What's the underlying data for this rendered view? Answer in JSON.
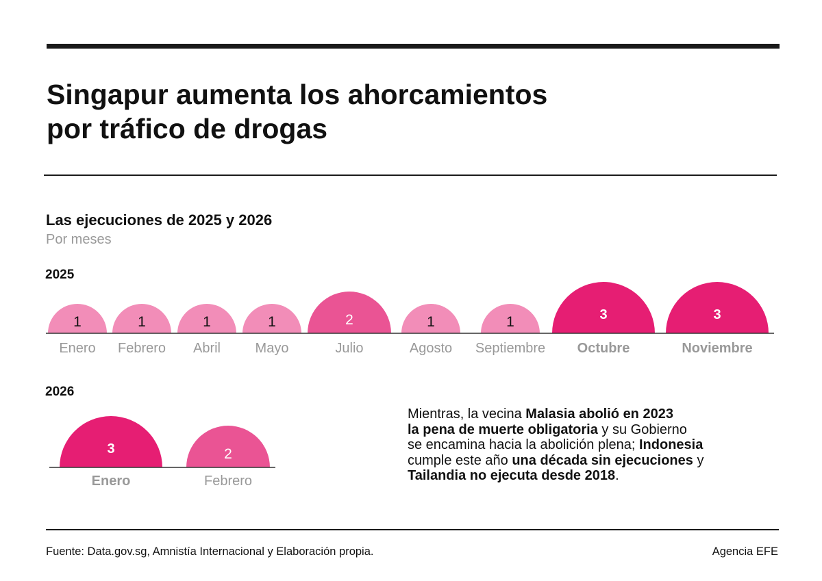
{
  "header": {
    "title_line1": "Singapur aumenta los ahorcamientos",
    "title_line2": "por tráfico de drogas"
  },
  "chart_data": {
    "type": "proportional-semicircles",
    "title": "Las ejecuciones de 2025 y 2026",
    "subtitle": "Por meses",
    "colors": {
      "1": "#f28db8",
      "2": "#ea5494",
      "3": "#e61e73"
    },
    "series": [
      {
        "name": "2025",
        "categories": [
          "Enero",
          "Febrero",
          "Abril",
          "Mayo",
          "Julio",
          "Agosto",
          "Septiembre",
          "Octubre",
          "Noviembre"
        ],
        "values": [
          1,
          1,
          1,
          1,
          2,
          1,
          1,
          3,
          3
        ]
      },
      {
        "name": "2026",
        "categories": [
          "Enero",
          "Febrero"
        ],
        "values": [
          3,
          2
        ]
      }
    ]
  },
  "note": [
    {
      "t": "Mientras, la vecina ",
      "b": false
    },
    {
      "t": "Malasia abolió en 2023",
      "b": true,
      "br": true
    },
    {
      "t": "la pena de muerte obligatoria",
      "b": true
    },
    {
      "t": " y su Gobierno",
      "b": false,
      "br": true
    },
    {
      "t": "se encamina hacia la abolición plena; ",
      "b": false
    },
    {
      "t": "Indonesia",
      "b": true,
      "br": true
    },
    {
      "t": "cumple este año ",
      "b": false
    },
    {
      "t": "una década sin ejecuciones",
      "b": true
    },
    {
      "t": " y",
      "b": false,
      "br": true
    },
    {
      "t": "Tailandia no ejecuta desde 2018",
      "b": true
    },
    {
      "t": ".",
      "b": false
    }
  ],
  "footer": {
    "source": "Fuente:  Data.gov.sg, Amnistía Internacional y Elaboración propia.",
    "credit": "Agencia EFE"
  }
}
